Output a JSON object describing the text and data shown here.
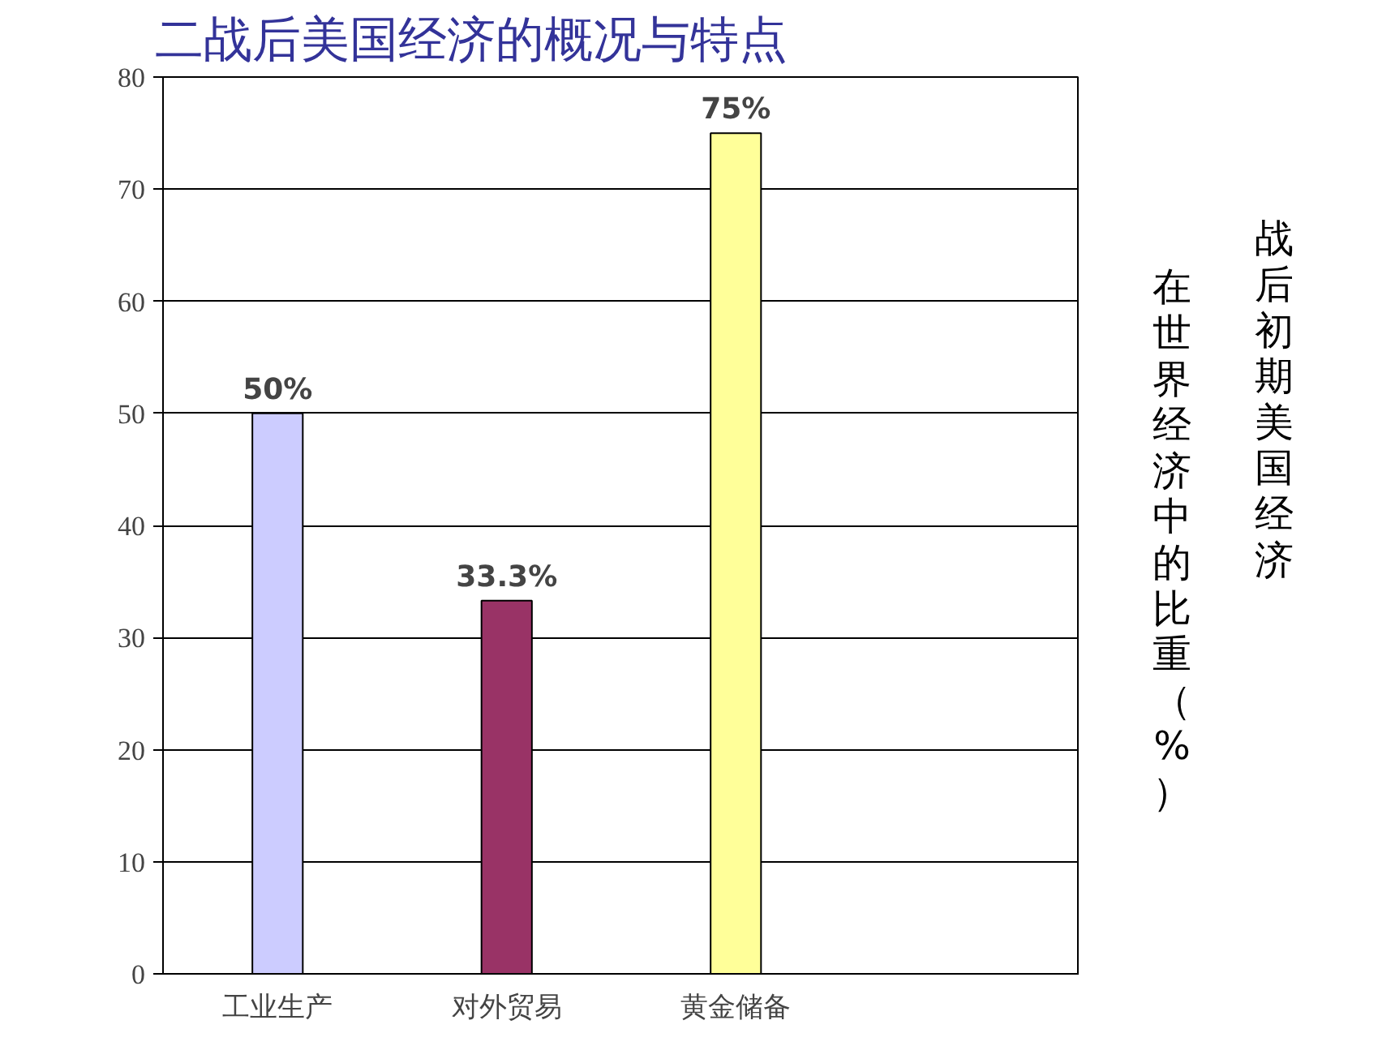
{
  "chart_data": {
    "type": "bar",
    "title": "二战后美国经济的概况与特点",
    "categories": [
      "工业生产",
      "对外贸易",
      "黄金储备",
      null
    ],
    "values": [
      50,
      33.3,
      75,
      null
    ],
    "colors": [
      "#ccccff",
      "#993366",
      "#ffff99",
      null
    ],
    "value_labels": [
      "50%",
      "33.3%",
      "75%",
      null
    ],
    "ylim": [
      0,
      80
    ],
    "yticks": [
      0,
      10,
      20,
      30,
      40,
      50,
      60,
      70,
      80
    ],
    "grid": "y",
    "annotations": [
      "战后初期美国经济",
      "在世界经济中的比重（%）"
    ]
  }
}
